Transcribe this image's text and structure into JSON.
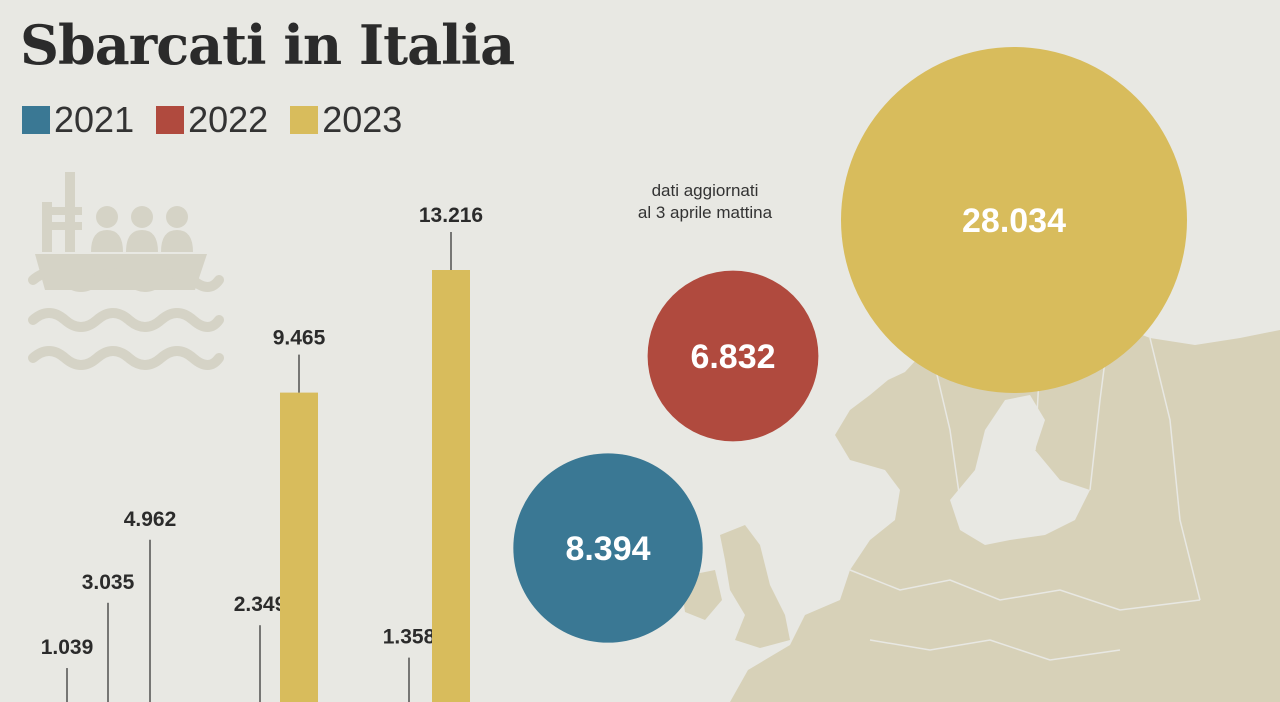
{
  "title": "Sbarcati in Italia",
  "colors": {
    "y2021": "#3a7894",
    "y2022": "#b04a3e",
    "y2023": "#d8bc5c",
    "background": "#e8e8e3",
    "map": "#d7d1b8"
  },
  "legend": [
    {
      "label": "2021",
      "color": "#3a7894"
    },
    {
      "label": "2022",
      "color": "#b04a3e"
    },
    {
      "label": "2023",
      "color": "#d8bc5c"
    }
  ],
  "note": {
    "line1": "dati aggiornati",
    "line2": "al 3 aprile mattina"
  },
  "icons": {
    "ship": "migrant-boat-icon",
    "map": "europe-map"
  },
  "chart_data": [
    {
      "type": "bar",
      "title": "Sbarcati in Italia",
      "series_order": [
        "2021",
        "2022",
        "2023"
      ],
      "groups": [
        {
          "values": {
            "2021": 1039,
            "2022": 3035,
            "2023": 4962
          },
          "labels": {
            "2021": "1.039",
            "2022": "3.035",
            "2023": "4.962"
          }
        },
        {
          "values": {
            "2022": 2349,
            "2023": 9465
          },
          "labels": {
            "2022": "2.349",
            "2023": "9.465"
          }
        },
        {
          "values": {
            "2022": 1358,
            "2023": 13216
          },
          "labels": {
            "2022": "1.358",
            "2023": "13.216"
          }
        }
      ]
    },
    {
      "type": "bubble",
      "series": [
        {
          "name": "2021",
          "value": 8394,
          "label": "8.394"
        },
        {
          "name": "2022",
          "value": 6832,
          "label": "6.832"
        },
        {
          "name": "2023",
          "value": 28034,
          "label": "28.034"
        }
      ]
    }
  ]
}
